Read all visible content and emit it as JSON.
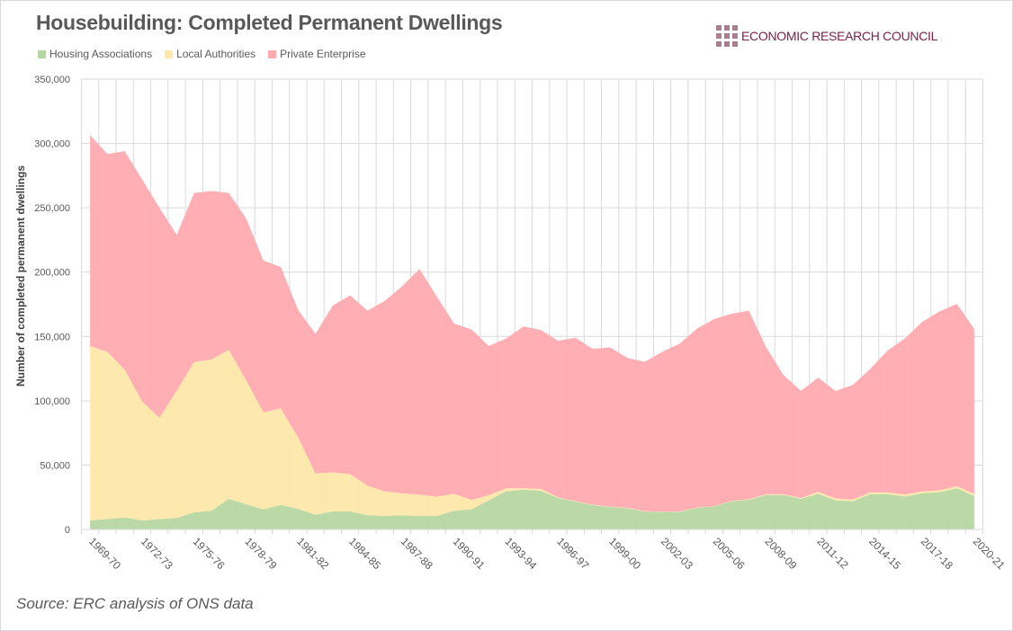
{
  "title": "Housebuilding: Completed Permanent Dwellings",
  "logo_text": "ECONOMIC RESEARCH COUNCIL",
  "source": "Source: ERC analysis of ONS data",
  "chart_data": {
    "type": "area",
    "stacked": true,
    "title": "Housebuilding: Completed Permanent Dwellings",
    "xlabel": "",
    "ylabel": "Number of completed permanent dwellings",
    "ylim": [
      0,
      350000
    ],
    "yticks": [
      0,
      50000,
      100000,
      150000,
      200000,
      250000,
      300000,
      350000
    ],
    "ytick_labels": [
      "0",
      "50,000",
      "100,000",
      "150,000",
      "200,000",
      "250,000",
      "300,000",
      "350,000"
    ],
    "grid": true,
    "legend_position": "top-left",
    "label_every": 3,
    "categories": [
      "1969-70",
      "1970-71",
      "1971-72",
      "1972-73",
      "1973-74",
      "1974-75",
      "1975-76",
      "1976-77",
      "1977-78",
      "1978-79",
      "1979-80",
      "1980-81",
      "1981-82",
      "1982-83",
      "1983-84",
      "1984-85",
      "1985-86",
      "1986-87",
      "1987-88",
      "1988-89",
      "1989-90",
      "1990-91",
      "1991-92",
      "1992-93",
      "1993-94",
      "1994-95",
      "1995-96",
      "1996-97",
      "1997-98",
      "1998-99",
      "1999-00",
      "2000-01",
      "2001-02",
      "2002-03",
      "2003-04",
      "2004-05",
      "2005-06",
      "2006-07",
      "2007-08",
      "2008-09",
      "2009-10",
      "2010-11",
      "2011-12",
      "2012-13",
      "2013-14",
      "2014-15",
      "2015-16",
      "2016-17",
      "2017-18",
      "2018-19",
      "2019-20",
      "2020-21"
    ],
    "series": [
      {
        "name": "Housing Associations",
        "color": "#b7d7a2",
        "values": [
          7000,
          8000,
          9300,
          7000,
          8000,
          8900,
          13300,
          14400,
          23800,
          19600,
          15600,
          19000,
          16000,
          11400,
          14000,
          14000,
          11000,
          10500,
          11000,
          10500,
          10500,
          14500,
          15600,
          22600,
          29600,
          30800,
          30000,
          24500,
          21700,
          18900,
          17500,
          16500,
          14000,
          13500,
          13700,
          16800,
          18000,
          21900,
          23000,
          26800,
          26800,
          23800,
          27700,
          22600,
          21900,
          27300,
          27300,
          25600,
          28000,
          28900,
          32000,
          26000
        ]
      },
      {
        "name": "Local Authorities",
        "color": "#fde8aa",
        "values": [
          135600,
          130000,
          114700,
          92500,
          78700,
          99100,
          116700,
          117600,
          115800,
          96400,
          75400,
          75000,
          55500,
          32200,
          30300,
          29000,
          23000,
          19100,
          17000,
          16500,
          14900,
          13200,
          7400,
          4000,
          2400,
          1200,
          1500,
          500,
          300,
          200,
          200,
          300,
          200,
          200,
          300,
          200,
          200,
          300,
          500,
          500,
          500,
          600,
          1600,
          1400,
          1400,
          1400,
          1400,
          1600,
          1500,
          1600,
          1600,
          1700
        ]
      },
      {
        "name": "Private Enterprise",
        "color": "#ffabb0",
        "values": [
          163900,
          153800,
          170000,
          172500,
          163300,
          121000,
          131500,
          131000,
          121900,
          125700,
          118000,
          110000,
          99100,
          108400,
          129700,
          139000,
          136000,
          148000,
          161000,
          175500,
          155600,
          132300,
          132400,
          116000,
          116400,
          125800,
          123500,
          121600,
          127000,
          121200,
          123800,
          116500,
          116100,
          124300,
          130300,
          139000,
          145400,
          145400,
          146500,
          114200,
          92700,
          83300,
          88700,
          83700,
          89000,
          96000,
          110300,
          121200,
          131800,
          138900,
          141700,
          128300
        ]
      }
    ]
  }
}
